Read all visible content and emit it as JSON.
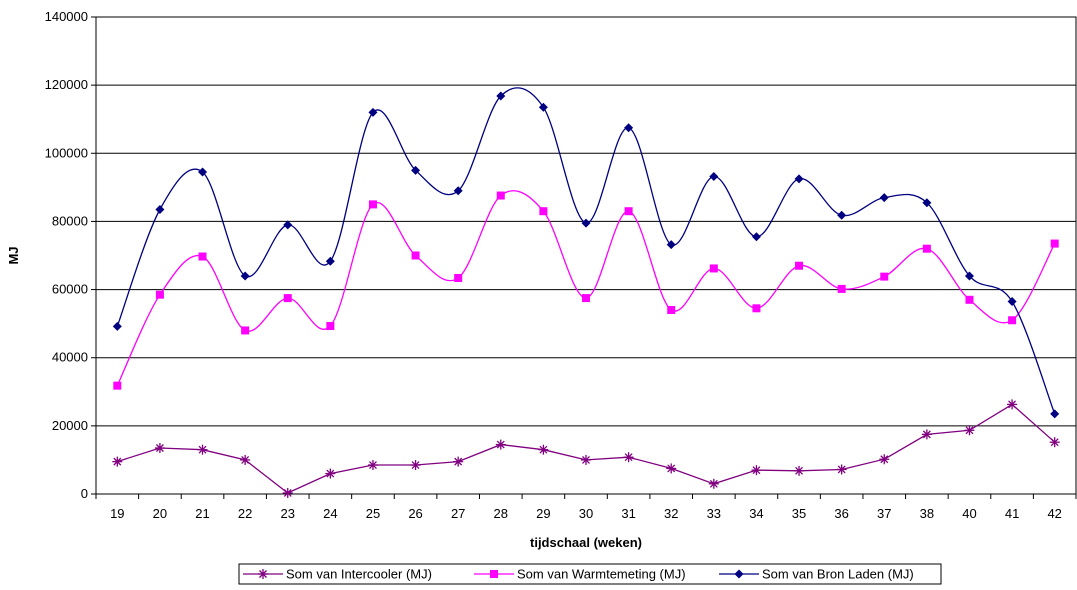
{
  "chart_data": {
    "type": "line",
    "title": "",
    "xlabel": "tijdschaal (weken)",
    "ylabel": "MJ",
    "ylim": [
      0,
      140000
    ],
    "y_ticks": [
      0,
      20000,
      40000,
      60000,
      80000,
      100000,
      120000,
      140000
    ],
    "y_tick_labels": [
      "0",
      "20000",
      "40000",
      "60000",
      "80000",
      "100000",
      "120000",
      "140000"
    ],
    "grid": "horizontal",
    "smoothed": true,
    "legend_position": "bottom",
    "categories": [
      "19",
      "20",
      "21",
      "22",
      "23",
      "24",
      "25",
      "26",
      "27",
      "28",
      "29",
      "30",
      "31",
      "32",
      "33",
      "34",
      "35",
      "36",
      "37",
      "38",
      "40",
      "41",
      "42"
    ],
    "series": [
      {
        "name": "Som van Intercooler (MJ)",
        "color": "#800080",
        "marker": "asterisk",
        "values": [
          9500,
          13500,
          13000,
          10000,
          300,
          6000,
          8500,
          8500,
          9500,
          14500,
          13000,
          10000,
          10800,
          7500,
          3000,
          7000,
          6800,
          7200,
          10200,
          17500,
          18700,
          26300,
          15200
        ]
      },
      {
        "name": "Som van Warmtemeting (MJ)",
        "color": "#ff00ff",
        "marker": "square",
        "values": [
          31800,
          58500,
          69700,
          48000,
          57500,
          49300,
          85000,
          70000,
          63400,
          87600,
          83000,
          57500,
          83000,
          54000,
          66200,
          54500,
          67000,
          60200,
          63800,
          72000,
          57000,
          51000,
          73500
        ]
      },
      {
        "name": "Som van Bron Laden (MJ)",
        "color": "#000080",
        "marker": "diamond",
        "values": [
          49200,
          83500,
          94500,
          64000,
          79000,
          68300,
          112000,
          95000,
          89000,
          116800,
          113500,
          79500,
          107500,
          73200,
          93200,
          75500,
          92500,
          81800,
          87000,
          85500,
          64000,
          56500,
          23500
        ]
      }
    ]
  }
}
